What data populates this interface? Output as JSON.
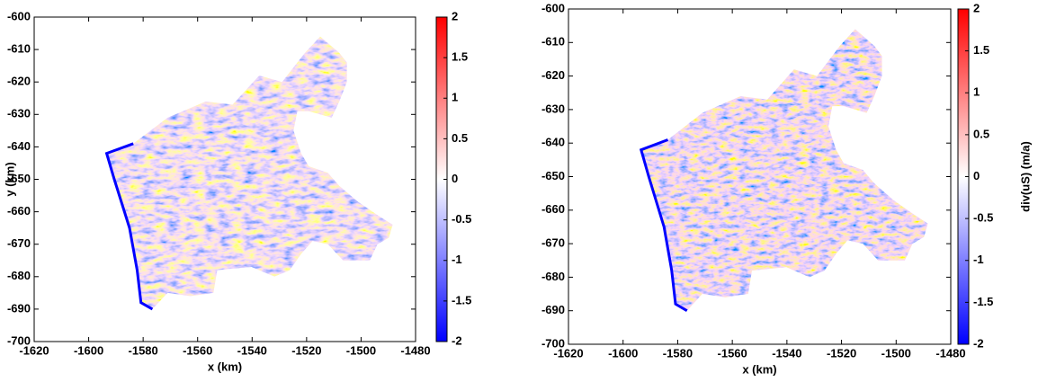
{
  "chart_data": [
    {
      "type": "heatmap",
      "xlabel": "x (km)",
      "ylabel": "y (km)",
      "xlim": [
        -1620,
        -1480
      ],
      "xticks": [
        -1620,
        -1600,
        -1580,
        -1560,
        -1540,
        -1520,
        -1500,
        -1480
      ],
      "ylim": [
        -700,
        -600
      ],
      "yticks": [
        -700,
        -690,
        -680,
        -670,
        -660,
        -650,
        -640,
        -630,
        -620,
        -610,
        -600
      ],
      "colormap": [
        "#0000ff",
        "#ffffff",
        "#ff0000"
      ],
      "colorbar": {
        "lim": [
          -2,
          2
        ],
        "ticks": [
          -2,
          -1.5,
          -1,
          -0.5,
          0,
          0.5,
          1,
          1.5,
          2
        ]
      }
    },
    {
      "type": "heatmap",
      "xlabel": "x (km)",
      "xlim": [
        -1620,
        -1480
      ],
      "xticks": [
        -1620,
        -1600,
        -1580,
        -1560,
        -1540,
        -1520,
        -1500,
        -1480
      ],
      "ylim": [
        -700,
        -600
      ],
      "yticks": [
        -700,
        -690,
        -680,
        -670,
        -660,
        -650,
        -640,
        -630,
        -620,
        -610,
        -600
      ],
      "colormap": [
        "#0000ff",
        "#ffffff",
        "#ff0000"
      ],
      "colorbar": {
        "lim": [
          -2,
          2
        ],
        "ticks": [
          -2,
          -1.5,
          -1,
          -0.5,
          0,
          0.5,
          1,
          1.5,
          2
        ],
        "label": "div(uS) (m/a)"
      }
    }
  ]
}
